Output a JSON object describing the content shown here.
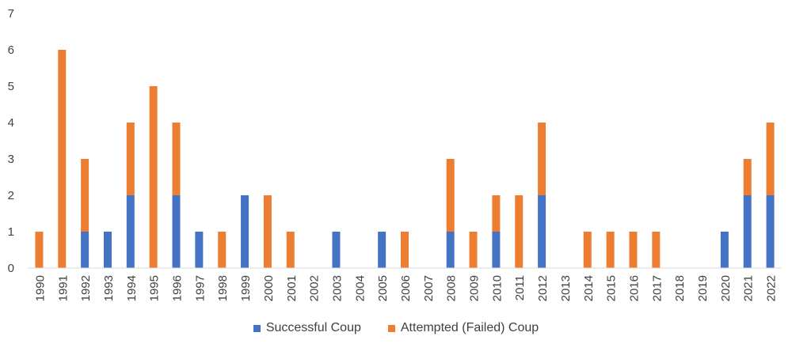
{
  "chart_data": {
    "type": "bar",
    "stacked": true,
    "categories": [
      "1990",
      "1991",
      "1992",
      "1993",
      "1994",
      "1995",
      "1996",
      "1997",
      "1998",
      "1999",
      "2000",
      "2001",
      "2002",
      "2003",
      "2004",
      "2005",
      "2006",
      "2007",
      "2008",
      "2009",
      "2010",
      "2011",
      "2012",
      "2013",
      "2014",
      "2015",
      "2016",
      "2017",
      "2018",
      "2019",
      "2020",
      "2021",
      "2022"
    ],
    "series": [
      {
        "name": "Successful Coup",
        "color": "#4472C4",
        "values": [
          0,
          0,
          1,
          1,
          2,
          0,
          2,
          1,
          0,
          2,
          0,
          0,
          0,
          1,
          0,
          1,
          0,
          0,
          1,
          0,
          1,
          0,
          2,
          0,
          0,
          0,
          0,
          0,
          0,
          0,
          1,
          2,
          2
        ]
      },
      {
        "name": "Attempted (Failed) Coup",
        "color": "#ED7D31",
        "values": [
          1,
          6,
          2,
          0,
          2,
          5,
          2,
          0,
          1,
          0,
          2,
          1,
          0,
          0,
          0,
          0,
          1,
          0,
          2,
          1,
          1,
          2,
          2,
          0,
          1,
          1,
          1,
          1,
          0,
          0,
          0,
          1,
          2
        ]
      }
    ],
    "y_ticks": [
      "0",
      "1",
      "2",
      "3",
      "4",
      "5",
      "6",
      "7"
    ],
    "ylim": [
      0,
      7
    ],
    "grid": false,
    "legend_position": "bottom"
  }
}
